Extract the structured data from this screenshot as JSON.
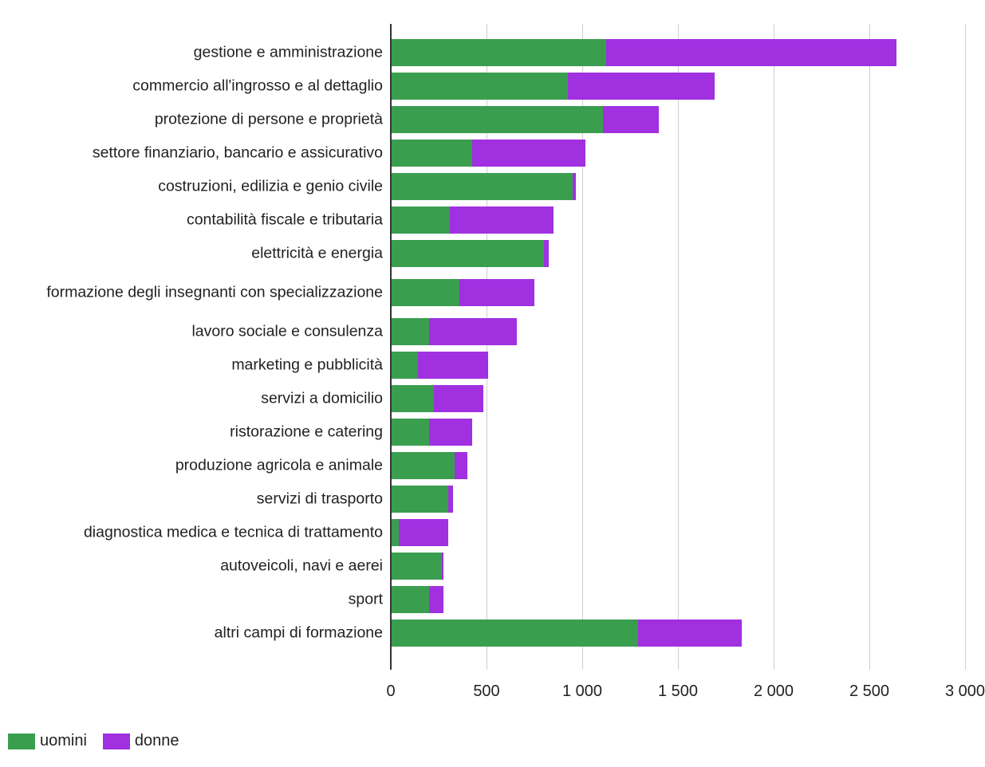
{
  "chart_data": {
    "type": "bar",
    "orientation": "horizontal",
    "stacked": true,
    "categories": [
      "gestione e amministrazione",
      "commercio all'ingrosso e al dettaglio",
      "protezione di persone e proprietà",
      "settore finanziario, bancario e assicurativo",
      "costruzioni, edilizia e genio civile",
      "contabilità fiscale e tributaria",
      "elettricità e energia",
      "formazione degli insegnanti con specializzazione",
      "lavoro sociale e consulenza",
      "marketing e pubblicità",
      "servizi a domicilio",
      "ristorazione e catering",
      "produzione agricola e animale",
      "servizi di trasporto",
      "diagnostica medica e tecnica di trattamento",
      "autoveicoli, navi e aerei",
      "sport",
      "altri campi di formazione"
    ],
    "series": [
      {
        "name": "uomini",
        "color": "#3a9e4f",
        "values": [
          1125,
          925,
          1108,
          425,
          950,
          308,
          800,
          358,
          200,
          142,
          225,
          200,
          333,
          300,
          42,
          267,
          200,
          1292
        ]
      },
      {
        "name": "donne",
        "color": "#a030e0",
        "values": [
          1517,
          767,
          292,
          592,
          17,
          542,
          25,
          392,
          458,
          366,
          258,
          225,
          67,
          25,
          258,
          8,
          75,
          541
        ]
      }
    ],
    "xlim": [
      0,
      3000
    ],
    "xticks": [
      0,
      500,
      1000,
      1500,
      2000,
      2500,
      3000
    ],
    "xtick_labels": [
      "0",
      "500",
      "1 000",
      "1 500",
      "2 000",
      "2 500",
      "3 000"
    ],
    "grid": "vertical",
    "legend": "bottom-left"
  }
}
